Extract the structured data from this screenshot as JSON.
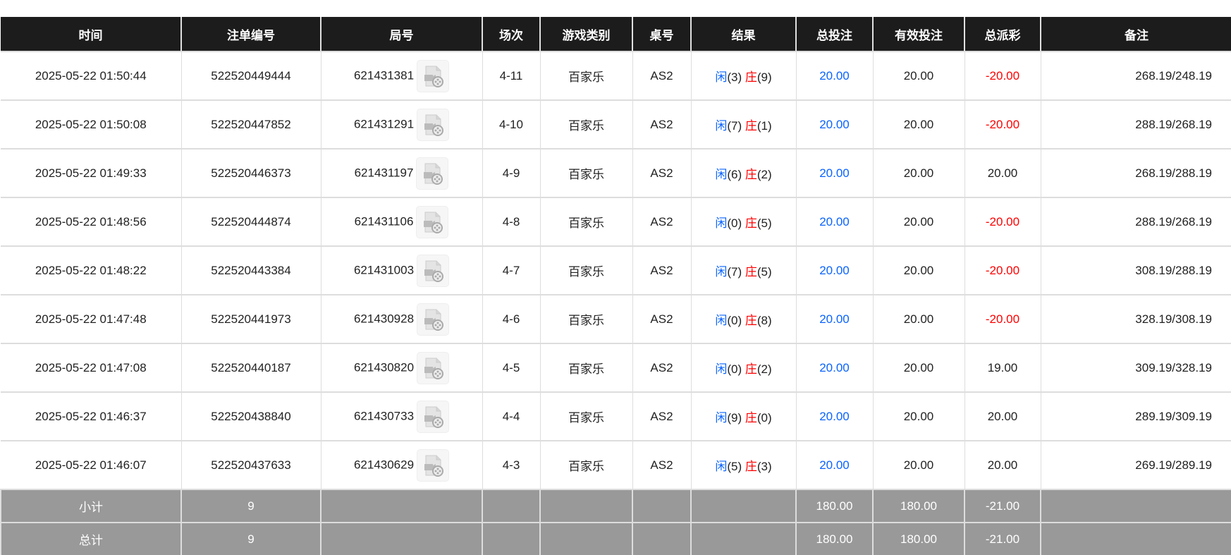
{
  "columns": [
    "时间",
    "注单编号",
    "局号",
    "场次",
    "游戏类别",
    "桌号",
    "结果",
    "总投注",
    "有效投注",
    "总派彩",
    "备注"
  ],
  "result_labels": {
    "player": "闲",
    "banker": "庄"
  },
  "colors": {
    "header_bg": "#1c1c1c",
    "bet_blue": "#0a63ff",
    "negative_red": "#ff0000",
    "summary_bg": "#999999"
  },
  "rows": [
    {
      "time": "2025-05-22 01:50:44",
      "bet_id": "522520449444",
      "round": "621431381",
      "shoe": "4-11",
      "game": "百家乐",
      "table": "AS2",
      "player": "(3)",
      "banker": "(9)",
      "total_bet": "20.00",
      "valid_bet": "20.00",
      "payout": "-20.00",
      "note": "268.19/248.19"
    },
    {
      "time": "2025-05-22 01:50:08",
      "bet_id": "522520447852",
      "round": "621431291",
      "shoe": "4-10",
      "game": "百家乐",
      "table": "AS2",
      "player": "(7)",
      "banker": "(1)",
      "total_bet": "20.00",
      "valid_bet": "20.00",
      "payout": "-20.00",
      "note": "288.19/268.19"
    },
    {
      "time": "2025-05-22 01:49:33",
      "bet_id": "522520446373",
      "round": "621431197",
      "shoe": "4-9",
      "game": "百家乐",
      "table": "AS2",
      "player": "(6)",
      "banker": "(2)",
      "total_bet": "20.00",
      "valid_bet": "20.00",
      "payout": "20.00",
      "note": "268.19/288.19"
    },
    {
      "time": "2025-05-22 01:48:56",
      "bet_id": "522520444874",
      "round": "621431106",
      "shoe": "4-8",
      "game": "百家乐",
      "table": "AS2",
      "player": "(0)",
      "banker": "(5)",
      "total_bet": "20.00",
      "valid_bet": "20.00",
      "payout": "-20.00",
      "note": "288.19/268.19"
    },
    {
      "time": "2025-05-22 01:48:22",
      "bet_id": "522520443384",
      "round": "621431003",
      "shoe": "4-7",
      "game": "百家乐",
      "table": "AS2",
      "player": "(7)",
      "banker": "(5)",
      "total_bet": "20.00",
      "valid_bet": "20.00",
      "payout": "-20.00",
      "note": "308.19/288.19"
    },
    {
      "time": "2025-05-22 01:47:48",
      "bet_id": "522520441973",
      "round": "621430928",
      "shoe": "4-6",
      "game": "百家乐",
      "table": "AS2",
      "player": "(0)",
      "banker": "(8)",
      "total_bet": "20.00",
      "valid_bet": "20.00",
      "payout": "-20.00",
      "note": "328.19/308.19"
    },
    {
      "time": "2025-05-22 01:47:08",
      "bet_id": "522520440187",
      "round": "621430820",
      "shoe": "4-5",
      "game": "百家乐",
      "table": "AS2",
      "player": "(0)",
      "banker": "(2)",
      "total_bet": "20.00",
      "valid_bet": "20.00",
      "payout": "19.00",
      "note": "309.19/328.19"
    },
    {
      "time": "2025-05-22 01:46:37",
      "bet_id": "522520438840",
      "round": "621430733",
      "shoe": "4-4",
      "game": "百家乐",
      "table": "AS2",
      "player": "(9)",
      "banker": "(0)",
      "total_bet": "20.00",
      "valid_bet": "20.00",
      "payout": "20.00",
      "note": "289.19/309.19"
    },
    {
      "time": "2025-05-22 01:46:07",
      "bet_id": "522520437633",
      "round": "621430629",
      "shoe": "4-3",
      "game": "百家乐",
      "table": "AS2",
      "player": "(5)",
      "banker": "(3)",
      "total_bet": "20.00",
      "valid_bet": "20.00",
      "payout": "20.00",
      "note": "269.19/289.19"
    }
  ],
  "summary": [
    {
      "label": "小计",
      "count": "9",
      "total_bet": "180.00",
      "valid_bet": "180.00",
      "payout": "-21.00"
    },
    {
      "label": "总计",
      "count": "9",
      "total_bet": "180.00",
      "valid_bet": "180.00",
      "payout": "-21.00"
    }
  ]
}
